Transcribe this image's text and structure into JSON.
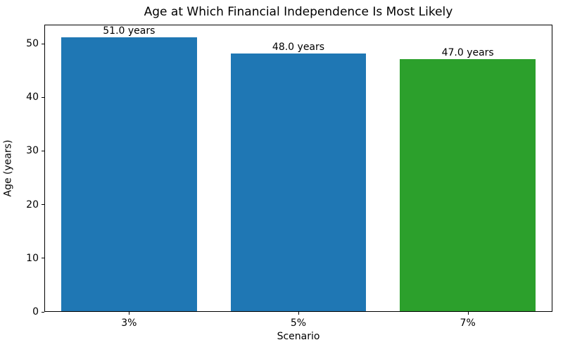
{
  "chart_data": {
    "type": "bar",
    "title": "Age at Which Financial Independence Is Most Likely",
    "xlabel": "Scenario",
    "ylabel": "Age (years)",
    "categories": [
      "3%",
      "5%",
      "7%"
    ],
    "values": [
      51.0,
      48.0,
      47.0
    ],
    "bar_labels": [
      "51.0 years",
      "48.0 years",
      "47.0 years"
    ],
    "bar_colors": [
      "#1f77b4",
      "#1f77b4",
      "#2ca02c"
    ],
    "yticks": [
      0,
      10,
      20,
      30,
      40,
      50
    ],
    "ylim": [
      0,
      53.55
    ],
    "bar_width_fraction": 0.8,
    "grid": false,
    "legend_position": "none",
    "spine_color": "#000000",
    "background_color": "#ffffff"
  }
}
